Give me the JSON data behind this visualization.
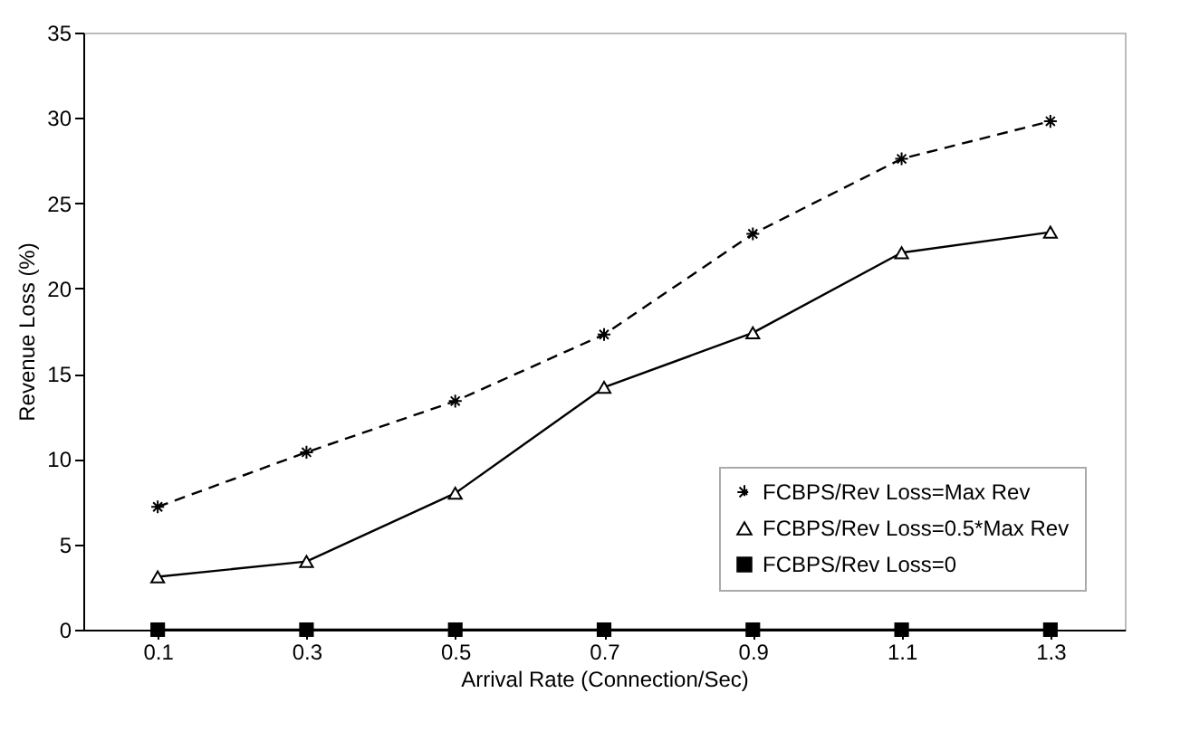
{
  "chart_data": {
    "type": "line",
    "xlabel": "Arrival Rate (Connection/Sec)",
    "ylabel": "Revenue Loss (%)",
    "categories": [
      "0.1",
      "0.3",
      "0.5",
      "0.7",
      "0.9",
      "1.1",
      "1.3"
    ],
    "series": [
      {
        "name": "FCBPS/Rev Loss=Max Rev",
        "color": "#000000",
        "marker": "cross",
        "line_style": "dashed",
        "values": [
          7.2,
          10.4,
          13.4,
          17.3,
          23.2,
          27.6,
          29.8
        ]
      },
      {
        "name": "FCBPS/Rev Loss=0.5*Max Rev",
        "color": "#000000",
        "marker": "triangle",
        "line_style": "solid",
        "values": [
          3.1,
          4.0,
          8.0,
          14.2,
          17.4,
          22.1,
          23.3
        ]
      },
      {
        "name": "FCBPS/Rev Loss=0",
        "color": "#000000",
        "marker": "square",
        "line_style": "solid",
        "values": [
          0,
          0,
          0,
          0,
          0,
          0,
          0
        ]
      }
    ],
    "ylim": [
      0,
      35
    ],
    "yticks": [
      0,
      5,
      10,
      15,
      20,
      25,
      30,
      35
    ],
    "grid": false,
    "legend": "bottom right"
  }
}
